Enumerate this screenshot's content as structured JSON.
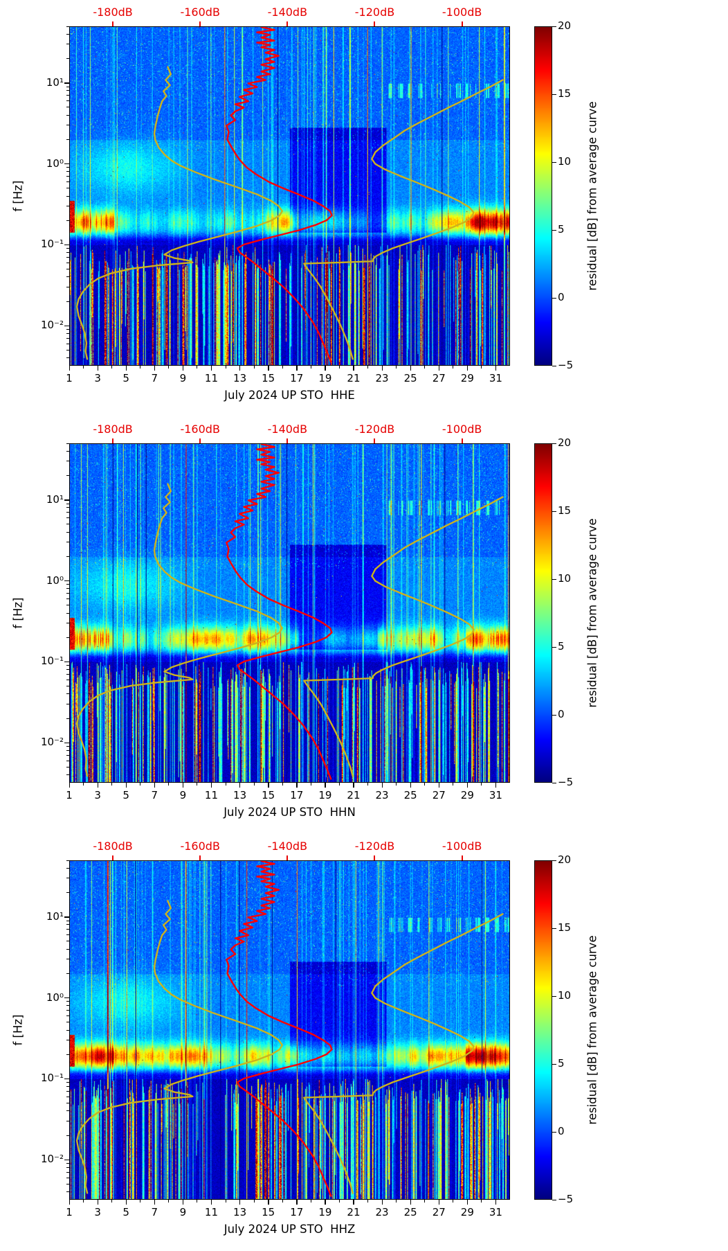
{
  "shared": {
    "ylabel": "f [Hz]",
    "colorbar_label": "residual [dB] from average curve",
    "x_tick_labels": [
      "1",
      "3",
      "5",
      "7",
      "9",
      "11",
      "13",
      "15",
      "17",
      "19",
      "21",
      "23",
      "25",
      "27",
      "29",
      "31"
    ],
    "y_tick_labels": [
      {
        "label": "10¹",
        "value": 10
      },
      {
        "label": "10⁰",
        "value": 1
      },
      {
        "label": "10⁻¹",
        "value": 0.1
      },
      {
        "label": "10⁻²",
        "value": 0.01
      }
    ],
    "db_tick_labels": [
      {
        "label": "-180dB",
        "value": -180
      },
      {
        "label": "-160dB",
        "value": -160
      },
      {
        "label": "-140dB",
        "value": -140
      },
      {
        "label": "-120dB",
        "value": -120
      },
      {
        "label": "-100dB",
        "value": -100
      }
    ],
    "colorbar_tick_labels": [
      {
        "label": "20",
        "value": 20
      },
      {
        "label": "15",
        "value": 15
      },
      {
        "label": "10",
        "value": 10
      },
      {
        "label": "5",
        "value": 5
      },
      {
        "label": "0",
        "value": 0
      },
      {
        "label": "−5",
        "value": -5
      }
    ],
    "colors": {
      "db_axis_red": "#e60000",
      "median_curve_red": "#ff0000",
      "noise_model_yellow": "#ccb31e",
      "colormap": "jet"
    }
  },
  "panels": [
    {
      "xlabel": "July 2024 UP STO  HHE",
      "channel": "HHE"
    },
    {
      "xlabel": "July 2024 UP STO  HHN",
      "channel": "HHN"
    },
    {
      "xlabel": "July 2024 UP STO  HHZ",
      "channel": "HHZ"
    }
  ],
  "chart_data": {
    "type": "heatmap",
    "subtype": "seismic-noise-residual-spectrogram",
    "station": "UP STO",
    "month": "July 2024",
    "channels": [
      "HHE",
      "HHN",
      "HHZ"
    ],
    "x_axis": {
      "unit": "day of July 2024",
      "range": [
        1,
        32
      ],
      "ticks": [
        1,
        3,
        5,
        7,
        9,
        11,
        13,
        15,
        17,
        19,
        21,
        23,
        25,
        27,
        29,
        31
      ]
    },
    "y_axis": {
      "label": "f [Hz]",
      "scale": "log",
      "range_hz": [
        0.0032,
        50
      ],
      "ticks_hz": [
        10,
        1,
        0.1,
        0.01
      ]
    },
    "top_axis": {
      "unit": "dB",
      "range_db": [
        -190,
        -89
      ],
      "ticks_db": [
        -180,
        -160,
        -140,
        -120,
        -100
      ],
      "color": "#e60000"
    },
    "colorbar": {
      "label": "residual [dB] from average curve",
      "range_db": [
        -5,
        20
      ],
      "ticks": [
        20,
        15,
        10,
        5,
        0,
        -5
      ],
      "colormap": "jet",
      "position": "right"
    },
    "heatmap_features": [
      "background residual near 0 dB (blue) across 1-50 Hz with cyan transient speckles and thin vertical lines",
      "strong secondary-microseism band at 0.1-0.3 Hz with +5 to +20 dB residuals (yellow/red), strongest on days 1-8 and 29-31, red blob at left edge near 0.2 Hz",
      "very dark (about -5 dB) quiet patch between roughly days 17-23 at 0.2-2 Hz",
      "dark low-residual gap just below the microseism band near 0.1 Hz",
      "dense colorful vertical stripes (transients, -5 to +20 dB) below 0.1 Hz down to 0.003 Hz all month",
      "scattered horizontal cyan dashes near 8-10 Hz in the last third of the month"
    ],
    "overlay_curves": [
      {
        "name": "station-median-psd",
        "color": "#ff0000",
        "points_f_hz_db": [
          [
            50,
            -146
          ],
          [
            46,
            -143
          ],
          [
            43,
            -147
          ],
          [
            40,
            -144
          ],
          [
            37,
            -146
          ],
          [
            34,
            -143
          ],
          [
            32,
            -147
          ],
          [
            30,
            -144
          ],
          [
            28,
            -146
          ],
          [
            26,
            -143
          ],
          [
            24,
            -145
          ],
          [
            22,
            -142
          ],
          [
            20,
            -145
          ],
          [
            18.5,
            -143
          ],
          [
            17,
            -146
          ],
          [
            15.5,
            -143
          ],
          [
            14,
            -146
          ],
          [
            13,
            -144
          ],
          [
            12,
            -147
          ],
          [
            11,
            -145
          ],
          [
            10,
            -149
          ],
          [
            9,
            -147
          ],
          [
            8.3,
            -150
          ],
          [
            7.5,
            -148
          ],
          [
            6.8,
            -151
          ],
          [
            6,
            -149
          ],
          [
            5.5,
            -152
          ],
          [
            5,
            -150
          ],
          [
            4.5,
            -152
          ],
          [
            4,
            -153
          ],
          [
            3.5,
            -152
          ],
          [
            3,
            -154
          ],
          [
            2.5,
            -153.5
          ],
          [
            2,
            -153.8
          ],
          [
            1.6,
            -152.8
          ],
          [
            1.3,
            -151.8
          ],
          [
            1.1,
            -150.8
          ],
          [
            0.9,
            -149.3
          ],
          [
            0.75,
            -147.3
          ],
          [
            0.6,
            -144.3
          ],
          [
            0.5,
            -141
          ],
          [
            0.42,
            -137.5
          ],
          [
            0.35,
            -134
          ],
          [
            0.3,
            -131.8
          ],
          [
            0.26,
            -130.2
          ],
          [
            0.23,
            -129.8
          ],
          [
            0.2,
            -131
          ],
          [
            0.175,
            -133.5
          ],
          [
            0.15,
            -137.5
          ],
          [
            0.13,
            -142
          ],
          [
            0.115,
            -146
          ],
          [
            0.1,
            -150
          ],
          [
            0.09,
            -151.5
          ],
          [
            0.08,
            -151
          ],
          [
            0.07,
            -149.5
          ],
          [
            0.06,
            -147.8
          ],
          [
            0.05,
            -146
          ],
          [
            0.04,
            -143.8
          ],
          [
            0.03,
            -141
          ],
          [
            0.022,
            -138.5
          ],
          [
            0.016,
            -136.3
          ],
          [
            0.011,
            -134.2
          ],
          [
            0.008,
            -132.8
          ],
          [
            0.006,
            -131.8
          ],
          [
            0.0045,
            -130.8
          ],
          [
            0.0035,
            -130
          ]
        ]
      },
      {
        "name": "low-noise-model",
        "color": "#ccb31e",
        "points_f_hz_db": [
          [
            16,
            -167.5
          ],
          [
            13,
            -166.8
          ],
          [
            11,
            -168
          ],
          [
            9.5,
            -167
          ],
          [
            8,
            -168.5
          ],
          [
            7,
            -167.8
          ],
          [
            6,
            -168.8
          ],
          [
            5,
            -169.3
          ],
          [
            4,
            -169.8
          ],
          [
            3,
            -170.3
          ],
          [
            2.4,
            -170.6
          ],
          [
            2,
            -170.4
          ],
          [
            1.6,
            -169.6
          ],
          [
            1.3,
            -168.2
          ],
          [
            1.1,
            -166.6
          ],
          [
            0.95,
            -164.6
          ],
          [
            0.8,
            -161.4
          ],
          [
            0.65,
            -157
          ],
          [
            0.52,
            -151.8
          ],
          [
            0.42,
            -147
          ],
          [
            0.35,
            -143.8
          ],
          [
            0.3,
            -142
          ],
          [
            0.26,
            -141.2
          ],
          [
            0.23,
            -141.8
          ],
          [
            0.2,
            -143.6
          ],
          [
            0.17,
            -147
          ],
          [
            0.145,
            -151.5
          ],
          [
            0.125,
            -156
          ],
          [
            0.108,
            -160.5
          ],
          [
            0.095,
            -164
          ],
          [
            0.085,
            -166.6
          ],
          [
            0.075,
            -168.3
          ],
          [
            0.068,
            -166
          ],
          [
            0.063,
            -162.5
          ],
          [
            0.06,
            -161.8
          ],
          [
            0.058,
            -165
          ],
          [
            0.055,
            -170
          ],
          [
            0.05,
            -176
          ],
          [
            0.044,
            -180.5
          ],
          [
            0.038,
            -183.5
          ],
          [
            0.032,
            -185.5
          ],
          [
            0.026,
            -187
          ],
          [
            0.021,
            -188
          ],
          [
            0.017,
            -188.4
          ],
          [
            0.013,
            -188
          ],
          [
            0.01,
            -187.2
          ],
          [
            0.008,
            -186.6
          ],
          [
            0.006,
            -186.2
          ],
          [
            0.0047,
            -186.4
          ],
          [
            0.0038,
            -186
          ]
        ]
      },
      {
        "name": "high-noise-model",
        "color": "#ccb31e",
        "points_f_hz_db": [
          [
            11,
            -90.5
          ],
          [
            9,
            -93.5
          ],
          [
            7.5,
            -96.5
          ],
          [
            6,
            -100
          ],
          [
            5,
            -103
          ],
          [
            4,
            -106.5
          ],
          [
            3.2,
            -110
          ],
          [
            2.6,
            -113
          ],
          [
            2.1,
            -115.5
          ],
          [
            1.7,
            -118
          ],
          [
            1.4,
            -119.8
          ],
          [
            1.15,
            -120.6
          ],
          [
            1.0,
            -119.8
          ],
          [
            0.85,
            -117.5
          ],
          [
            0.7,
            -113.8
          ],
          [
            0.58,
            -110
          ],
          [
            0.48,
            -106.3
          ],
          [
            0.4,
            -103
          ],
          [
            0.34,
            -100.3
          ],
          [
            0.29,
            -98.2
          ],
          [
            0.25,
            -97.2
          ],
          [
            0.22,
            -97.6
          ],
          [
            0.19,
            -99.3
          ],
          [
            0.16,
            -102.5
          ],
          [
            0.14,
            -105.5
          ],
          [
            0.12,
            -109
          ],
          [
            0.105,
            -112.2
          ],
          [
            0.09,
            -115.8
          ],
          [
            0.08,
            -118
          ],
          [
            0.072,
            -119.6
          ],
          [
            0.066,
            -120.3
          ],
          [
            0.062,
            -120.4
          ],
          [
            0.06,
            -128
          ],
          [
            0.058,
            -136.2
          ],
          [
            0.05,
            -135.4
          ],
          [
            0.04,
            -134
          ],
          [
            0.03,
            -132.4
          ],
          [
            0.022,
            -131
          ],
          [
            0.015,
            -129.4
          ],
          [
            0.01,
            -127.8
          ],
          [
            0.007,
            -126.6
          ],
          [
            0.005,
            -125.6
          ],
          [
            0.0038,
            -125
          ]
        ]
      }
    ]
  }
}
